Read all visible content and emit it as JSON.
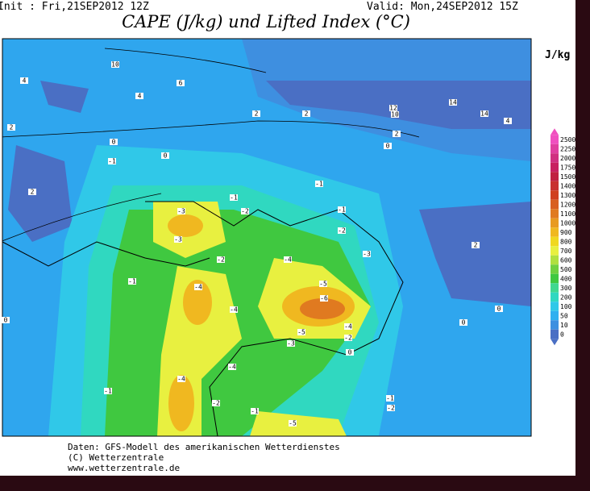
{
  "header": {
    "init": "Init : Fri,21SEP2012 12Z",
    "valid": "Valid: Mon,24SEP2012 15Z",
    "title": "CAPE (J/kg) und Lifted Index (°C)"
  },
  "legend": {
    "unit": "J/kg",
    "levels": [
      2500,
      2250,
      2000,
      1750,
      1500,
      1400,
      1300,
      1200,
      1100,
      1000,
      900,
      800,
      700,
      600,
      500,
      400,
      300,
      200,
      100,
      50,
      10,
      0
    ],
    "colors": [
      "#f050c0",
      "#e040a0",
      "#d03080",
      "#c82060",
      "#c02040",
      "#c83030",
      "#d04020",
      "#d86020",
      "#e07a20",
      "#e89a20",
      "#f0b820",
      "#f0d820",
      "#e8f040",
      "#b0e040",
      "#70d040",
      "#40c840",
      "#40d890",
      "#30d8c0",
      "#30c8e8",
      "#2fb0f0",
      "#3e8fe0",
      "#4a6fc4"
    ]
  },
  "map": {
    "contour_labels": [
      "10",
      "6",
      "4",
      "4",
      "2",
      "2",
      "2",
      "12",
      "10",
      "14",
      "14",
      "4",
      "2",
      "0",
      "0",
      "0",
      "-1",
      "2",
      "-3",
      "-1",
      "-2",
      "-3",
      "-1",
      "-1",
      "-2",
      "-3",
      "2",
      "-4",
      "-5",
      "-6",
      "-4",
      "-1",
      "-4",
      "-4",
      "-5",
      "-3",
      "-2",
      "0",
      "-4",
      "-2",
      "-1",
      "-1",
      "-5",
      "-1",
      "-2",
      "0",
      "0",
      "0",
      "-2",
      "-4"
    ]
  },
  "footer": {
    "lines": [
      "Daten: GFS-Modell des amerikanischen Wetterdienstes",
      "(C) Wetterzentrale",
      "www.wetterzentrale.de"
    ]
  }
}
